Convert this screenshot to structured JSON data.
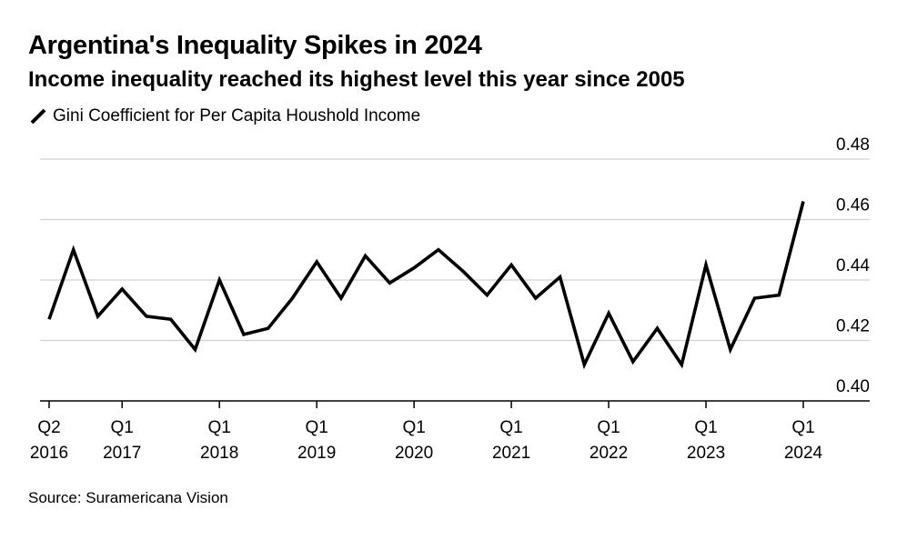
{
  "header": {
    "title": "Argentina's Inequality Spikes in 2024",
    "subtitle": "Income inequality reached its highest level this year since 2005"
  },
  "footer": {
    "source": "Source: Suramericana Vision"
  },
  "chart_data": {
    "type": "line",
    "title": "Argentina's Inequality Spikes in 2024",
    "subtitle": "Income inequality reached its highest level this year since 2005",
    "xlabel": "",
    "ylabel": "",
    "ylim": [
      0.4,
      0.48
    ],
    "yticks": [
      0.4,
      0.42,
      0.44,
      0.46,
      0.48
    ],
    "ytick_labels": [
      "0.40",
      "0.42",
      "0.44",
      "0.46",
      "0.48"
    ],
    "y_axis_side": "right",
    "grid": true,
    "legend": "top-left",
    "x": [
      "2016-Q2",
      "2016-Q3",
      "2016-Q4",
      "2017-Q1",
      "2017-Q2",
      "2017-Q3",
      "2017-Q4",
      "2018-Q1",
      "2018-Q2",
      "2018-Q3",
      "2018-Q4",
      "2019-Q1",
      "2019-Q2",
      "2019-Q3",
      "2019-Q4",
      "2020-Q1",
      "2020-Q2",
      "2020-Q3",
      "2020-Q4",
      "2021-Q1",
      "2021-Q2",
      "2021-Q3",
      "2021-Q4",
      "2022-Q1",
      "2022-Q2",
      "2022-Q3",
      "2022-Q4",
      "2023-Q1",
      "2023-Q2",
      "2023-Q3",
      "2023-Q4",
      "2024-Q1"
    ],
    "xticks": [
      {
        "x": "2016-Q2",
        "line1": "Q2",
        "line2": "2016"
      },
      {
        "x": "2017-Q1",
        "line1": "Q1",
        "line2": "2017"
      },
      {
        "x": "2018-Q1",
        "line1": "Q1",
        "line2": "2018"
      },
      {
        "x": "2019-Q1",
        "line1": "Q1",
        "line2": "2019"
      },
      {
        "x": "2020-Q1",
        "line1": "Q1",
        "line2": "2020"
      },
      {
        "x": "2021-Q1",
        "line1": "Q1",
        "line2": "2021"
      },
      {
        "x": "2022-Q1",
        "line1": "Q1",
        "line2": "2022"
      },
      {
        "x": "2023-Q1",
        "line1": "Q1",
        "line2": "2023"
      },
      {
        "x": "2024-Q1",
        "line1": "Q1",
        "line2": "2024"
      }
    ],
    "series": [
      {
        "name": "Gini Coefficient for Per Capita Houshold Income",
        "color": "#000000",
        "values": [
          0.427,
          0.45,
          0.428,
          0.437,
          0.428,
          0.427,
          0.417,
          0.44,
          0.422,
          0.424,
          0.434,
          0.446,
          0.434,
          0.448,
          0.439,
          0.444,
          0.45,
          0.443,
          0.435,
          0.445,
          0.434,
          0.441,
          0.412,
          0.429,
          0.413,
          0.424,
          0.412,
          0.445,
          0.417,
          0.434,
          0.435,
          0.466
        ]
      }
    ]
  }
}
